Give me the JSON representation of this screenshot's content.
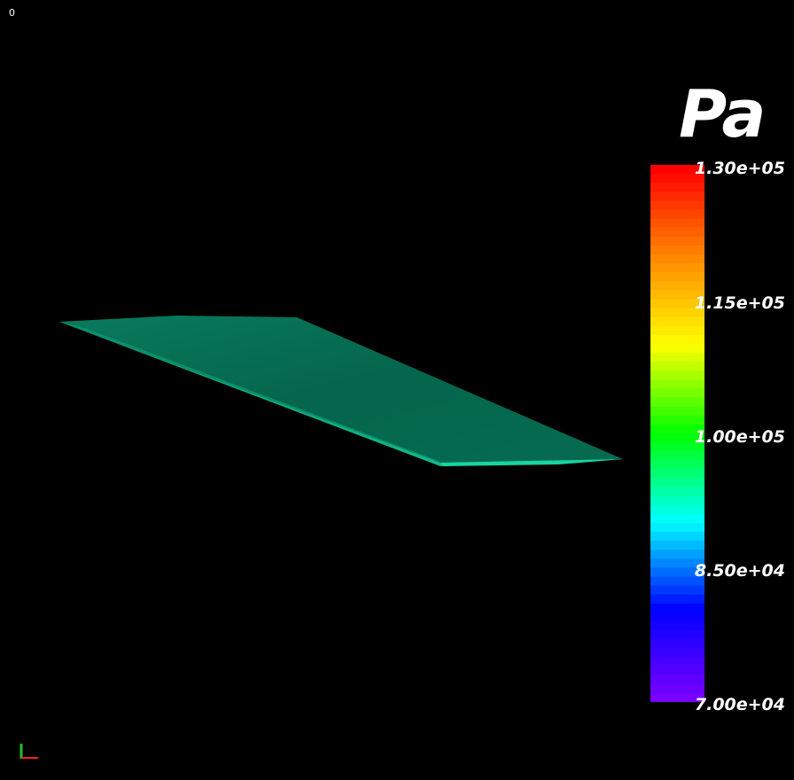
{
  "viewer": {
    "frame_label": "0",
    "colors": {
      "background": "#000000",
      "surface_top": "#036a4f",
      "surface_edge": "#10c28e"
    }
  },
  "scalar_bar": {
    "title": "Pa",
    "ticks": [
      "1.30e+05",
      "1.15e+05",
      "1.00e+05",
      "8.50e+04",
      "7.00e+04"
    ],
    "range": [
      70000,
      130000
    ],
    "colormap": "rainbow",
    "colormap_stops": [
      "#ff0000",
      "#ff8800",
      "#ffff00",
      "#00ff00",
      "#00ffff",
      "#0000ff",
      "#7700ff"
    ]
  },
  "axes_widget": {
    "x_color": "#ff2020",
    "y_color": "#20c020"
  }
}
